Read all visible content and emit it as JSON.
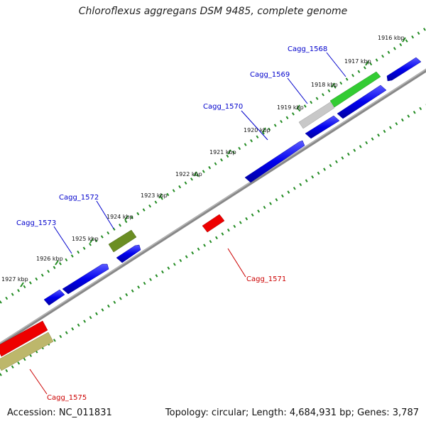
{
  "title": "Chloroflexus aggregans DSM 9485, complete genome",
  "footer": {
    "accession": "Accession: NC_011831",
    "summary": "Topology: circular; Length: 4,684,931 bp; Genes: 3,787"
  },
  "colors": {
    "forward_gene": "#0000ee",
    "reverse_gene": "#ee0000",
    "olive_gene": "#6b8e23",
    "khaki_gene": "#bdb76b",
    "grey_gene": "#c8c8c8",
    "green_gene": "#33cc33",
    "backbone": "#888888",
    "ticks": "#228b22",
    "forward_label": "#0000cc",
    "reverse_label": "#cc0000"
  },
  "ticks": [
    {
      "label": "1916 kbp"
    },
    {
      "label": "1917 kbp"
    },
    {
      "label": "1918 kbp"
    },
    {
      "label": "1919 kbp"
    },
    {
      "label": "1920 kbp"
    },
    {
      "label": "1921 kbp"
    },
    {
      "label": "1922 kbp"
    },
    {
      "label": "1923 kbp"
    },
    {
      "label": "1924 kbp"
    },
    {
      "label": "1925 kbp"
    },
    {
      "label": "1926 kbp"
    },
    {
      "label": "1927 kbp"
    }
  ],
  "gene_labels": [
    {
      "text": "Cagg_1568"
    },
    {
      "text": "Cagg_1569"
    },
    {
      "text": "Cagg_1570"
    },
    {
      "text": "Cagg_1572"
    },
    {
      "text": "Cagg_1573"
    },
    {
      "text": "Cagg_1571"
    },
    {
      "text": "Cagg_1575"
    }
  ]
}
